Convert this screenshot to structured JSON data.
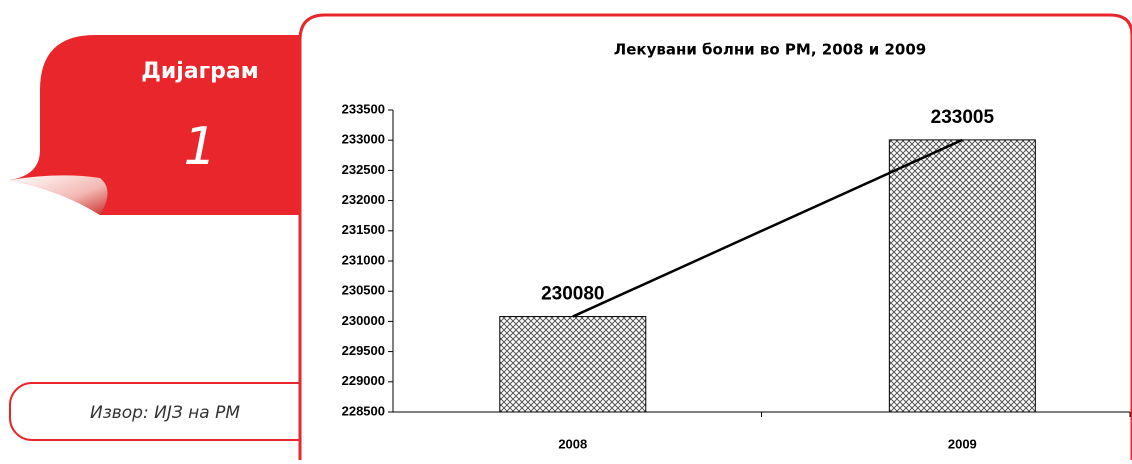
{
  "panel": {
    "label": "Дијаграм",
    "number": "1",
    "source": "Извор: ИЈЗ на РМ"
  },
  "chart_data": {
    "type": "bar",
    "title": "Лекувани болни во РМ, 2008 и 2009",
    "categories": [
      "2008",
      "2009"
    ],
    "values": [
      230080,
      233005
    ],
    "ylim": [
      228500,
      233500
    ],
    "yticks": [
      228500,
      229000,
      229500,
      230000,
      230500,
      231000,
      231500,
      232000,
      232500,
      233000,
      233500
    ],
    "trend_line": true
  }
}
